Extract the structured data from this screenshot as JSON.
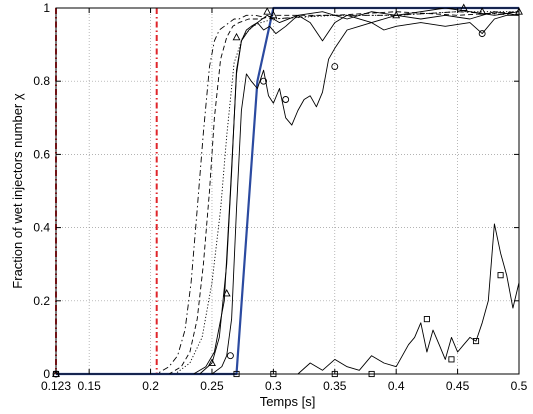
{
  "chart_data": {
    "type": "line",
    "xlabel": "Temps [s]",
    "ylabel": "Fraction of wet injectors number χ",
    "xlim": [
      0.123,
      0.5
    ],
    "ylim": [
      0,
      1
    ],
    "x_ticks": [
      0.123,
      0.15,
      0.2,
      0.25,
      0.3,
      0.35,
      0.4,
      0.45,
      0.5
    ],
    "x_tick_labels": [
      "0.123",
      "0.15",
      "0.2",
      "0.25",
      "0.3",
      "0.35",
      "0.4",
      "0.45",
      "0.5"
    ],
    "y_ticks": [
      0,
      0.2,
      0.4,
      0.6,
      0.8,
      1
    ],
    "y_tick_labels": [
      "0",
      "0.2",
      "0.4",
      "0.6",
      "0.8",
      "1"
    ],
    "grid": true,
    "vertical_markers": [
      {
        "x": 0.123,
        "color": "#e0262b",
        "style": "dash-dot"
      },
      {
        "x": 0.205,
        "color": "#e0262b",
        "style": "dash-dot"
      }
    ],
    "series": [
      {
        "style": "solid",
        "color": "#2b4aa0",
        "width": 2.2,
        "x": [
          0.123,
          0.27,
          0.287,
          0.3,
          0.5
        ],
        "y": [
          0,
          0,
          0.8,
          1,
          1
        ]
      },
      {
        "style": "dash-dot",
        "color": "#000000",
        "width": 0.9,
        "x": [
          0.123,
          0.205,
          0.215,
          0.222,
          0.228,
          0.233,
          0.238,
          0.243,
          0.248,
          0.252,
          0.256,
          0.26,
          0.264,
          0.268,
          0.272,
          0.278,
          0.285,
          0.3,
          0.34,
          0.4,
          0.45,
          0.5
        ],
        "y": [
          0,
          0,
          0.02,
          0.05,
          0.12,
          0.25,
          0.45,
          0.66,
          0.84,
          0.91,
          0.94,
          0.95,
          0.96,
          0.97,
          0.97,
          0.98,
          0.98,
          0.97,
          0.98,
          0.98,
          0.99,
          0.98
        ]
      },
      {
        "style": "dashed",
        "color": "#000000",
        "width": 0.9,
        "x": [
          0.123,
          0.215,
          0.225,
          0.232,
          0.238,
          0.243,
          0.248,
          0.252,
          0.257,
          0.262,
          0.267,
          0.272,
          0.28,
          0.29,
          0.3,
          0.35,
          0.4,
          0.45,
          0.5
        ],
        "y": [
          0,
          0,
          0.02,
          0.06,
          0.15,
          0.3,
          0.5,
          0.7,
          0.86,
          0.92,
          0.95,
          0.96,
          0.97,
          0.97,
          0.98,
          0.98,
          0.99,
          0.98,
          0.99
        ]
      },
      {
        "style": "dotted",
        "color": "#000000",
        "width": 0.9,
        "x": [
          0.123,
          0.22,
          0.232,
          0.242,
          0.25,
          0.257,
          0.262,
          0.268,
          0.275,
          0.283,
          0.29,
          0.3,
          0.35,
          0.4,
          0.45,
          0.5
        ],
        "y": [
          0,
          0,
          0.03,
          0.1,
          0.25,
          0.45,
          0.65,
          0.85,
          0.92,
          0.95,
          0.96,
          0.97,
          0.98,
          0.98,
          0.99,
          0.99
        ]
      },
      {
        "style": "solid",
        "color": "#000000",
        "width": 0.9,
        "x": [
          0.123,
          0.235,
          0.245,
          0.252,
          0.26,
          0.265,
          0.27,
          0.274,
          0.278,
          0.282,
          0.287,
          0.292,
          0.297,
          0.302,
          0.31,
          0.32,
          0.33,
          0.34,
          0.35,
          0.36,
          0.38,
          0.4,
          0.42,
          0.44,
          0.46,
          0.48,
          0.5
        ],
        "y": [
          0,
          0,
          0.02,
          0.06,
          0.2,
          0.5,
          0.82,
          0.91,
          0.94,
          0.95,
          0.96,
          0.94,
          0.95,
          0.93,
          0.95,
          0.98,
          0.96,
          0.91,
          0.96,
          0.98,
          0.96,
          0.98,
          0.97,
          0.98,
          0.97,
          0.99,
          0.98
        ]
      },
      {
        "style": "solid",
        "color": "#000000",
        "width": 0.9,
        "marker": "triangle",
        "x": [
          0.123,
          0.24,
          0.25,
          0.256,
          0.262,
          0.266,
          0.27,
          0.274,
          0.28,
          0.287,
          0.295,
          0.305,
          0.32,
          0.34,
          0.36,
          0.38,
          0.4,
          0.42,
          0.44,
          0.46,
          0.48,
          0.5
        ],
        "y": [
          0,
          0,
          0.03,
          0.1,
          0.3,
          0.55,
          0.83,
          0.91,
          0.94,
          0.96,
          0.98,
          0.96,
          0.98,
          0.99,
          0.97,
          0.99,
          0.98,
          0.99,
          1,
          0.99,
          0.98,
          0.99
        ],
        "marker_x": [
          0.123,
          0.25,
          0.262,
          0.27,
          0.295,
          0.3,
          0.4,
          0.455,
          0.47,
          0.5
        ],
        "marker_y": [
          0,
          0.03,
          0.22,
          0.92,
          0.99,
          0.98,
          0.98,
          1,
          0.99,
          0.99
        ]
      },
      {
        "style": "solid",
        "color": "#000000",
        "width": 0.9,
        "marker": "circle",
        "x": [
          0.123,
          0.25,
          0.258,
          0.262,
          0.266,
          0.27,
          0.274,
          0.278,
          0.282,
          0.287,
          0.292,
          0.296,
          0.3,
          0.305,
          0.31,
          0.315,
          0.32,
          0.325,
          0.33,
          0.335,
          0.34,
          0.345,
          0.35,
          0.36,
          0.37,
          0.38,
          0.39,
          0.4,
          0.42,
          0.44,
          0.46,
          0.47,
          0.48,
          0.49,
          0.5
        ],
        "y": [
          0,
          0,
          0.02,
          0.05,
          0.15,
          0.45,
          0.72,
          0.82,
          0.8,
          0.78,
          0.83,
          0.76,
          0.74,
          0.78,
          0.7,
          0.68,
          0.72,
          0.75,
          0.76,
          0.73,
          0.77,
          0.86,
          0.89,
          0.94,
          0.95,
          0.96,
          0.94,
          0.95,
          0.96,
          0.95,
          0.96,
          0.93,
          0.97,
          0.98,
          0.98
        ],
        "marker_x": [
          0.123,
          0.265,
          0.292,
          0.31,
          0.35,
          0.47
        ],
        "marker_y": [
          0,
          0.05,
          0.8,
          0.75,
          0.84,
          0.93
        ]
      },
      {
        "style": "solid",
        "color": "#000000",
        "width": 0.9,
        "marker": "square",
        "x": [
          0.123,
          0.32,
          0.33,
          0.34,
          0.35,
          0.36,
          0.37,
          0.38,
          0.39,
          0.4,
          0.41,
          0.415,
          0.42,
          0.425,
          0.43,
          0.435,
          0.44,
          0.445,
          0.45,
          0.455,
          0.46,
          0.465,
          0.47,
          0.475,
          0.48,
          0.485,
          0.49,
          0.495,
          0.5
        ],
        "y": [
          0,
          0,
          0.03,
          0.01,
          0.04,
          0.02,
          0.01,
          0.05,
          0.03,
          0.02,
          0.08,
          0.1,
          0.14,
          0.06,
          0.12,
          0.08,
          0.04,
          0.1,
          0.06,
          0.08,
          0.1,
          0.09,
          0.14,
          0.2,
          0.41,
          0.33,
          0.27,
          0.18,
          0.25
        ],
        "marker_x": [
          0.123,
          0.27,
          0.3,
          0.35,
          0.38,
          0.425,
          0.445,
          0.465,
          0.485
        ],
        "marker_y": [
          0,
          0,
          0,
          0,
          0,
          0.15,
          0.04,
          0.09,
          0.27
        ]
      }
    ]
  }
}
